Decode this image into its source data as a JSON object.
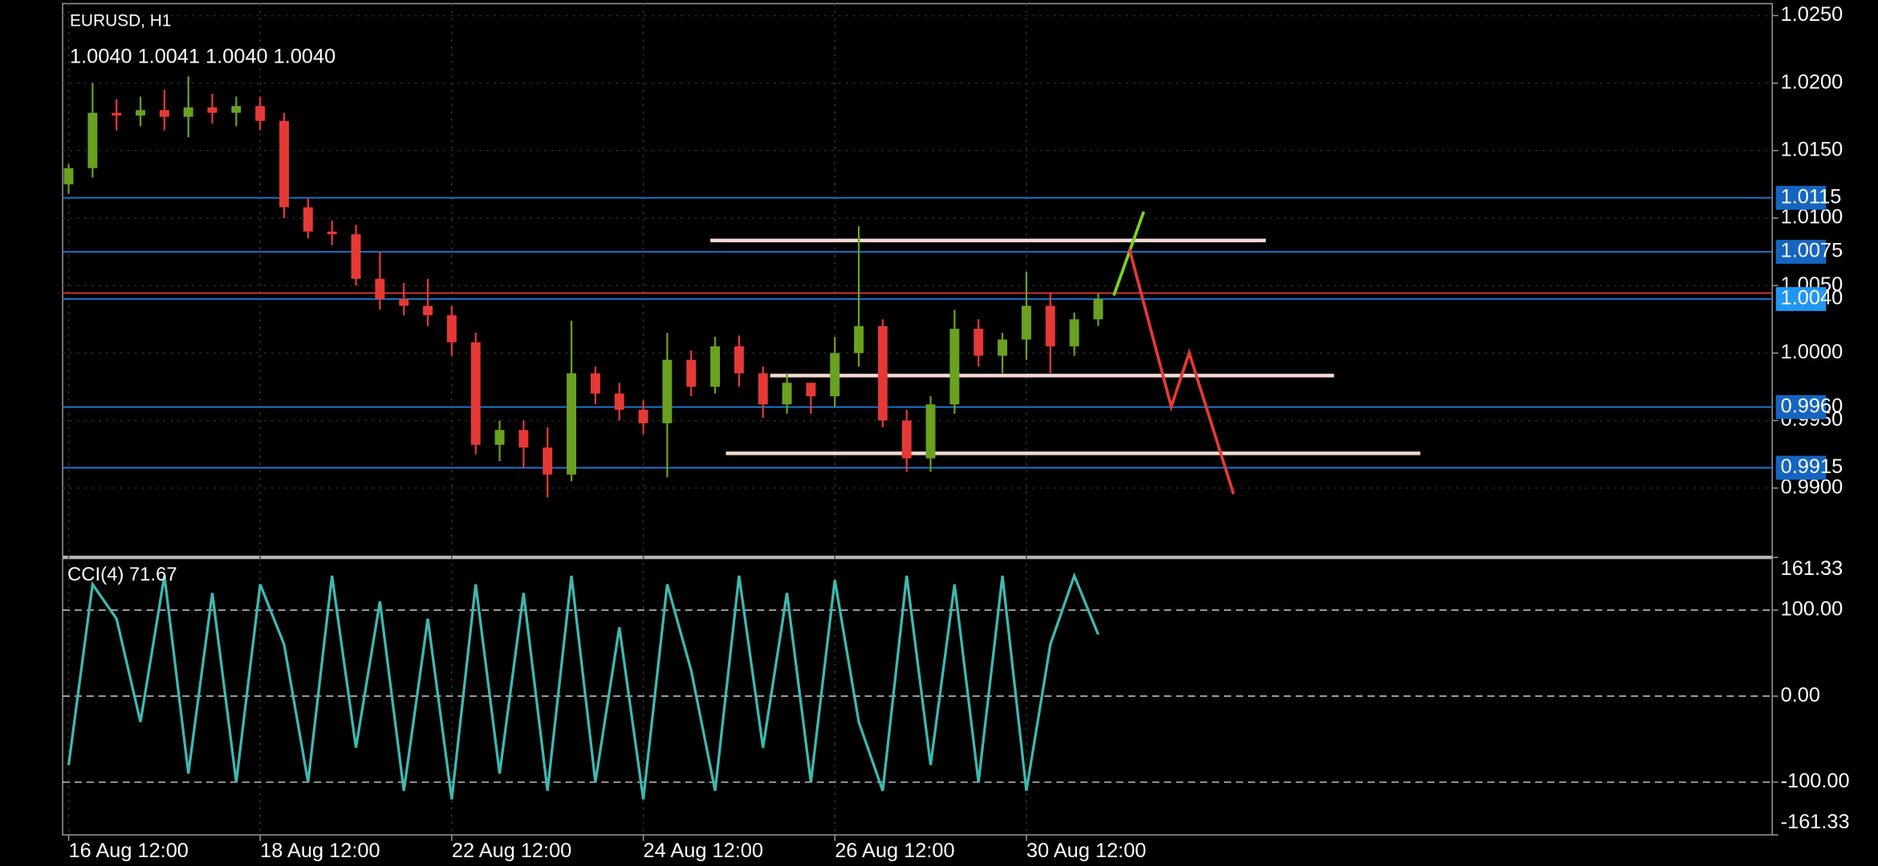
{
  "chart_data": {
    "type": "candlestick",
    "title": "EURUSD, H1",
    "quote": "1.0040 1.0041 1.0040 1.0040",
    "up_color": "#6aa121",
    "down_color": "#e53935",
    "open": [
      1.0125,
      1.0137,
      1.0178,
      1.0176,
      1.018,
      1.0175,
      1.0182,
      1.0178,
      1.0183,
      1.0172,
      1.0108,
      1.009,
      1.0088,
      1.0055,
      1.004,
      1.0035,
      1.0028,
      1.0008,
      0.9932,
      0.9943,
      0.993,
      0.991,
      0.9985,
      0.997,
      0.9958,
      0.9948,
      0.9995,
      0.9975,
      1.0005,
      0.9985,
      0.9962,
      0.9978,
      0.9968,
      1.0,
      1.002,
      0.995,
      0.9922,
      0.9962,
      1.0018,
      0.9998,
      1.001,
      1.0035,
      1.0005,
      1.0025
    ],
    "high": [
      1.014,
      1.02,
      1.0188,
      1.019,
      1.0195,
      1.0205,
      1.0192,
      1.019,
      1.019,
      1.0178,
      1.0115,
      1.0098,
      1.0095,
      1.0075,
      1.0052,
      1.0055,
      1.0035,
      1.0015,
      0.995,
      0.995,
      0.9945,
      1.0024,
      0.999,
      0.9978,
      0.9965,
      1.0015,
      1.0002,
      1.0012,
      1.0013,
      0.999,
      0.9985,
      0.9978,
      1.0012,
      1.0094,
      1.0025,
      0.9958,
      0.9968,
      1.0032,
      1.0025,
      1.0015,
      1.006,
      1.0045,
      1.003,
      1.0044
    ],
    "low": [
      1.0118,
      1.013,
      1.0165,
      1.0168,
      1.0165,
      1.016,
      1.017,
      1.0168,
      1.0165,
      1.01,
      1.0085,
      1.008,
      1.005,
      1.0032,
      1.0028,
      1.002,
      0.9998,
      0.9925,
      0.992,
      0.9915,
      0.9893,
      0.9905,
      0.9962,
      0.995,
      0.994,
      0.9908,
      0.9968,
      0.997,
      0.9975,
      0.9952,
      0.9955,
      0.9955,
      0.996,
      0.999,
      0.9945,
      0.9912,
      0.9912,
      0.9955,
      0.999,
      0.9985,
      0.9995,
      0.9985,
      0.9998,
      1.002
    ],
    "close": [
      1.0137,
      1.0178,
      1.0176,
      1.018,
      1.0175,
      1.0182,
      1.0178,
      1.0183,
      1.0172,
      1.0108,
      1.009,
      1.0088,
      1.0055,
      1.004,
      1.0035,
      1.0028,
      1.0008,
      0.9932,
      0.9943,
      0.993,
      0.991,
      0.9985,
      0.997,
      0.9958,
      0.9948,
      0.9995,
      0.9975,
      1.0005,
      0.9985,
      0.9962,
      0.9978,
      0.9968,
      1.0,
      1.002,
      0.995,
      0.9922,
      0.9962,
      1.0018,
      0.9998,
      1.001,
      1.0035,
      1.0005,
      1.0025,
      1.004
    ],
    "xlim": [
      -0.25,
      71.15
    ],
    "xticks": [
      {
        "value": 0,
        "label": "16 Aug 12:00"
      },
      {
        "value": 8,
        "label": "18 Aug 12:00"
      },
      {
        "value": 16,
        "label": "22 Aug 12:00"
      },
      {
        "value": 24,
        "label": "24 Aug 12:00"
      },
      {
        "value": 32,
        "label": "26 Aug 12:00"
      },
      {
        "value": 40,
        "label": "30 Aug 12:00"
      }
    ],
    "ylim": [
      0.98495,
      1.02589
    ],
    "yticks": [
      {
        "value": 1.025,
        "label": "1.0250"
      },
      {
        "value": 1.02,
        "label": "1.0200"
      },
      {
        "value": 1.015,
        "label": "1.0150"
      },
      {
        "value": 1.01,
        "label": "1.0100"
      },
      {
        "value": 1.005,
        "label": "1.0050"
      },
      {
        "value": 1.0,
        "label": "1.0000"
      },
      {
        "value": 0.995,
        "label": "0.9950"
      },
      {
        "value": 0.99,
        "label": "0.9900"
      }
    ],
    "levels": [
      {
        "value": 1.0115,
        "label": "1.0115",
        "color": "#1565c0"
      },
      {
        "value": 1.0075,
        "label": "1.0075",
        "color": "#1565c0"
      },
      {
        "value": 1.004,
        "label": "1.0040",
        "color": "#2196f3"
      },
      {
        "value": 0.996,
        "label": "0.9960",
        "color": "#1565c0"
      },
      {
        "value": 0.9915,
        "label": "0.9915",
        "color": "#1565c0"
      }
    ],
    "indicator": {
      "title": "CCI(4) 71.67",
      "color": "#3fb8b0",
      "values": [
        -80,
        130,
        90,
        -30,
        140,
        -90,
        120,
        -100,
        130,
        60,
        -100,
        140,
        -60,
        110,
        -110,
        90,
        -120,
        130,
        -90,
        120,
        -110,
        140,
        -100,
        80,
        -120,
        130,
        30,
        -110,
        140,
        -60,
        120,
        -100,
        135,
        -30,
        -110,
        140,
        -80,
        130,
        -100,
        140,
        -110,
        60,
        140,
        71.67
      ],
      "ylim": [
        -161.33,
        161.33
      ],
      "yticks": [
        161.33,
        {
          "value": 100,
          "label": "100.00"
        },
        {
          "value": 0,
          "label": "0.00"
        },
        {
          "value": -100,
          "label": "-100.00"
        },
        -161.33
      ]
    }
  }
}
